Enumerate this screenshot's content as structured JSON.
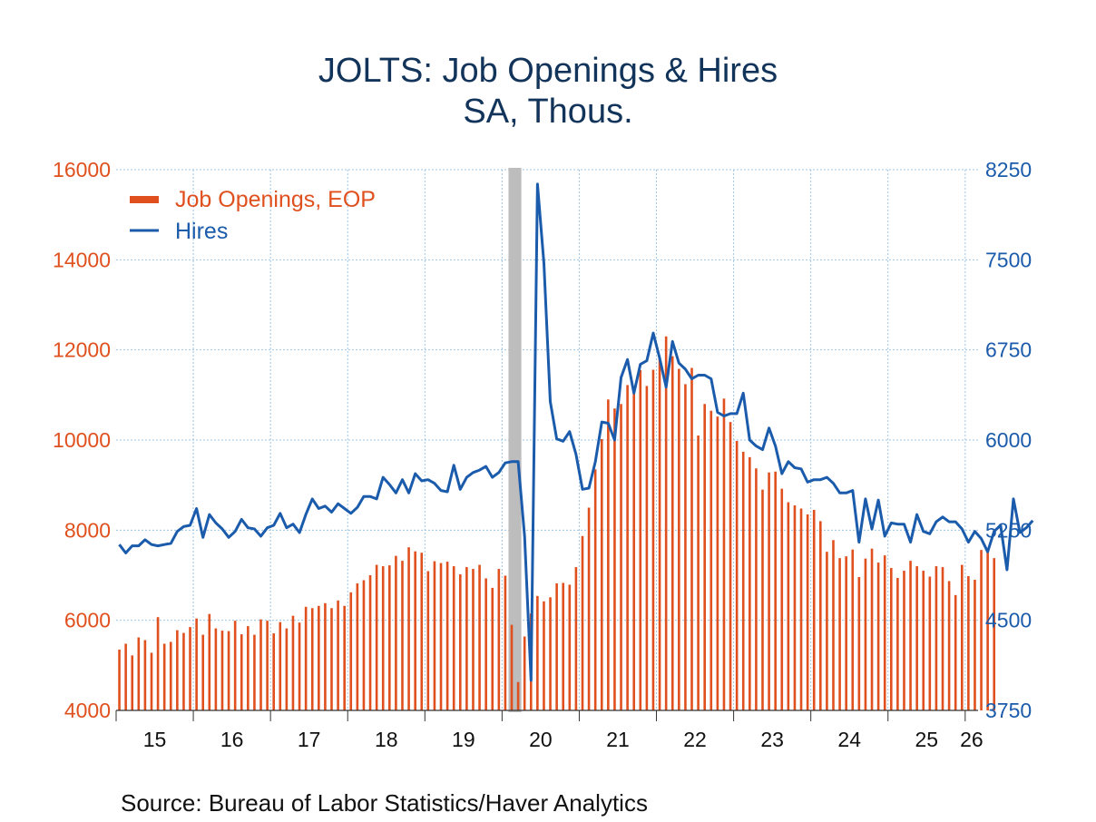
{
  "title": "JOLTS: Job Openings & Hires",
  "subtitle": "SA, Thous.",
  "source": "Source:  Bureau of Labor Statistics/Haver Analytics",
  "colors": {
    "job_openings": "#e0501e",
    "hires": "#1b5bab",
    "recession": "#bdbdbd",
    "grid": "#9cc6e6"
  },
  "chart_data": {
    "type": "bar+line",
    "x_tick_labels": [
      "15",
      "16",
      "17",
      "18",
      "19",
      "20",
      "21",
      "22",
      "23",
      "24",
      "25",
      "26"
    ],
    "x_range": [
      "2015-01",
      "2026-01"
    ],
    "left_axis": {
      "ylim": [
        4000,
        16000
      ],
      "ticks": [
        "4000",
        "6000",
        "8000",
        "10000",
        "12000",
        "14000",
        "16000"
      ]
    },
    "right_axis": {
      "ylim": [
        3750,
        8250
      ],
      "ticks": [
        "3750",
        "4500",
        "5250",
        "6000",
        "6750",
        "7500",
        "8250"
      ]
    },
    "recession_band": [
      "2020-02",
      "2020-04"
    ],
    "grid": true,
    "legend_position": "top-left",
    "series": [
      {
        "name": "Job Openings, EOP",
        "type": "bar",
        "axis": "left",
        "start": "2015-01",
        "values": [
          5350,
          5480,
          5220,
          5620,
          5560,
          5280,
          6070,
          5480,
          5520,
          5780,
          5720,
          5850,
          6040,
          5680,
          6140,
          5820,
          5770,
          5760,
          5990,
          5690,
          5870,
          5680,
          6020,
          5990,
          5710,
          5960,
          5820,
          6100,
          5950,
          6300,
          6270,
          6320,
          6380,
          6270,
          6440,
          6320,
          6620,
          6820,
          6890,
          7000,
          7230,
          7200,
          7220,
          7430,
          7320,
          7620,
          7530,
          7500,
          7090,
          7310,
          7270,
          7300,
          7200,
          7020,
          7180,
          7140,
          7230,
          6930,
          6720,
          7140,
          6990,
          5900,
          4630,
          5640,
          6150,
          6540,
          6420,
          6510,
          6820,
          6830,
          6790,
          7180,
          7870,
          8500,
          9350,
          10020,
          10900,
          10700,
          10800,
          11220,
          11180,
          11550,
          11200,
          11560,
          11820,
          12300,
          11860,
          11580,
          11240,
          11600,
          10100,
          10800,
          10650,
          10520,
          10920,
          10400,
          9980,
          9740,
          9620,
          9370,
          8900,
          9280,
          9300,
          8920,
          8620,
          8550,
          8480,
          8350,
          8450,
          8200,
          7520,
          7780,
          7380,
          7420,
          7570,
          6960,
          7370,
          7590,
          7280,
          7440,
          7160,
          6940,
          7100,
          7320,
          7200,
          7100,
          6970,
          7200,
          7180,
          6870,
          6560,
          7230,
          6980,
          6900,
          7560,
          7520,
          7380
        ]
      },
      {
        "name": "Hires",
        "type": "line",
        "axis": "right",
        "start": "2015-01",
        "values": [
          5130,
          5060,
          5120,
          5120,
          5170,
          5130,
          5120,
          5130,
          5140,
          5240,
          5280,
          5290,
          5430,
          5190,
          5380,
          5310,
          5260,
          5190,
          5240,
          5340,
          5270,
          5260,
          5200,
          5270,
          5290,
          5390,
          5270,
          5300,
          5230,
          5380,
          5510,
          5430,
          5450,
          5400,
          5470,
          5430,
          5390,
          5440,
          5530,
          5530,
          5510,
          5690,
          5630,
          5560,
          5670,
          5560,
          5720,
          5660,
          5670,
          5640,
          5580,
          5570,
          5790,
          5590,
          5690,
          5730,
          5750,
          5780,
          5690,
          5730,
          5810,
          5820,
          5820,
          5200,
          4000,
          8130,
          7470,
          6320,
          6010,
          5990,
          6070,
          5880,
          5590,
          5600,
          5820,
          6150,
          6140,
          6000,
          6520,
          6670,
          6390,
          6630,
          6660,
          6890,
          6680,
          6440,
          6820,
          6640,
          6590,
          6510,
          6540,
          6540,
          6510,
          6230,
          6200,
          6220,
          6220,
          6390,
          6000,
          5950,
          5920,
          6100,
          5950,
          5720,
          5820,
          5770,
          5760,
          5650,
          5670,
          5670,
          5690,
          5640,
          5560,
          5560,
          5580,
          5150,
          5510,
          5260,
          5500,
          5200,
          5310,
          5300,
          5300,
          5150,
          5380,
          5240,
          5220,
          5320,
          5360,
          5320,
          5320,
          5260,
          5150,
          5240,
          5180,
          5070,
          5240,
          5290,
          4920,
          5510,
          5230,
          5270,
          5330
        ]
      }
    ]
  }
}
